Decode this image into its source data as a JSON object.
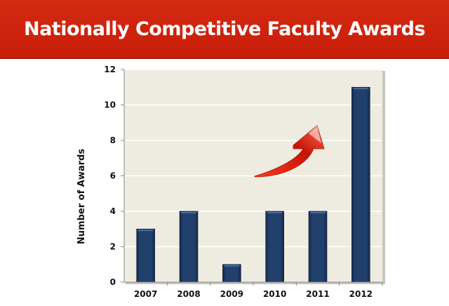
{
  "title": "Nationally Competitive Faculty Awards",
  "chart_data": {
    "type": "bar",
    "title": "Nationally Competitive Faculty Awards",
    "xlabel": "",
    "ylabel": "Number of Awards",
    "categories": [
      "2007",
      "2008",
      "2009",
      "2010",
      "2011",
      "2012"
    ],
    "values": [
      3,
      4,
      1,
      4,
      4,
      11
    ],
    "ylim": [
      0,
      12
    ],
    "yticks": [
      "0",
      "2",
      "4",
      "6",
      "8",
      "10",
      "12"
    ],
    "grid": true,
    "annotations": [
      "upward-trend-arrow"
    ],
    "colors": {
      "bar": "#1f3a63",
      "plot_bg": "#eeebe0",
      "arrow": "#e0200c",
      "banner": "#cf240e"
    }
  }
}
